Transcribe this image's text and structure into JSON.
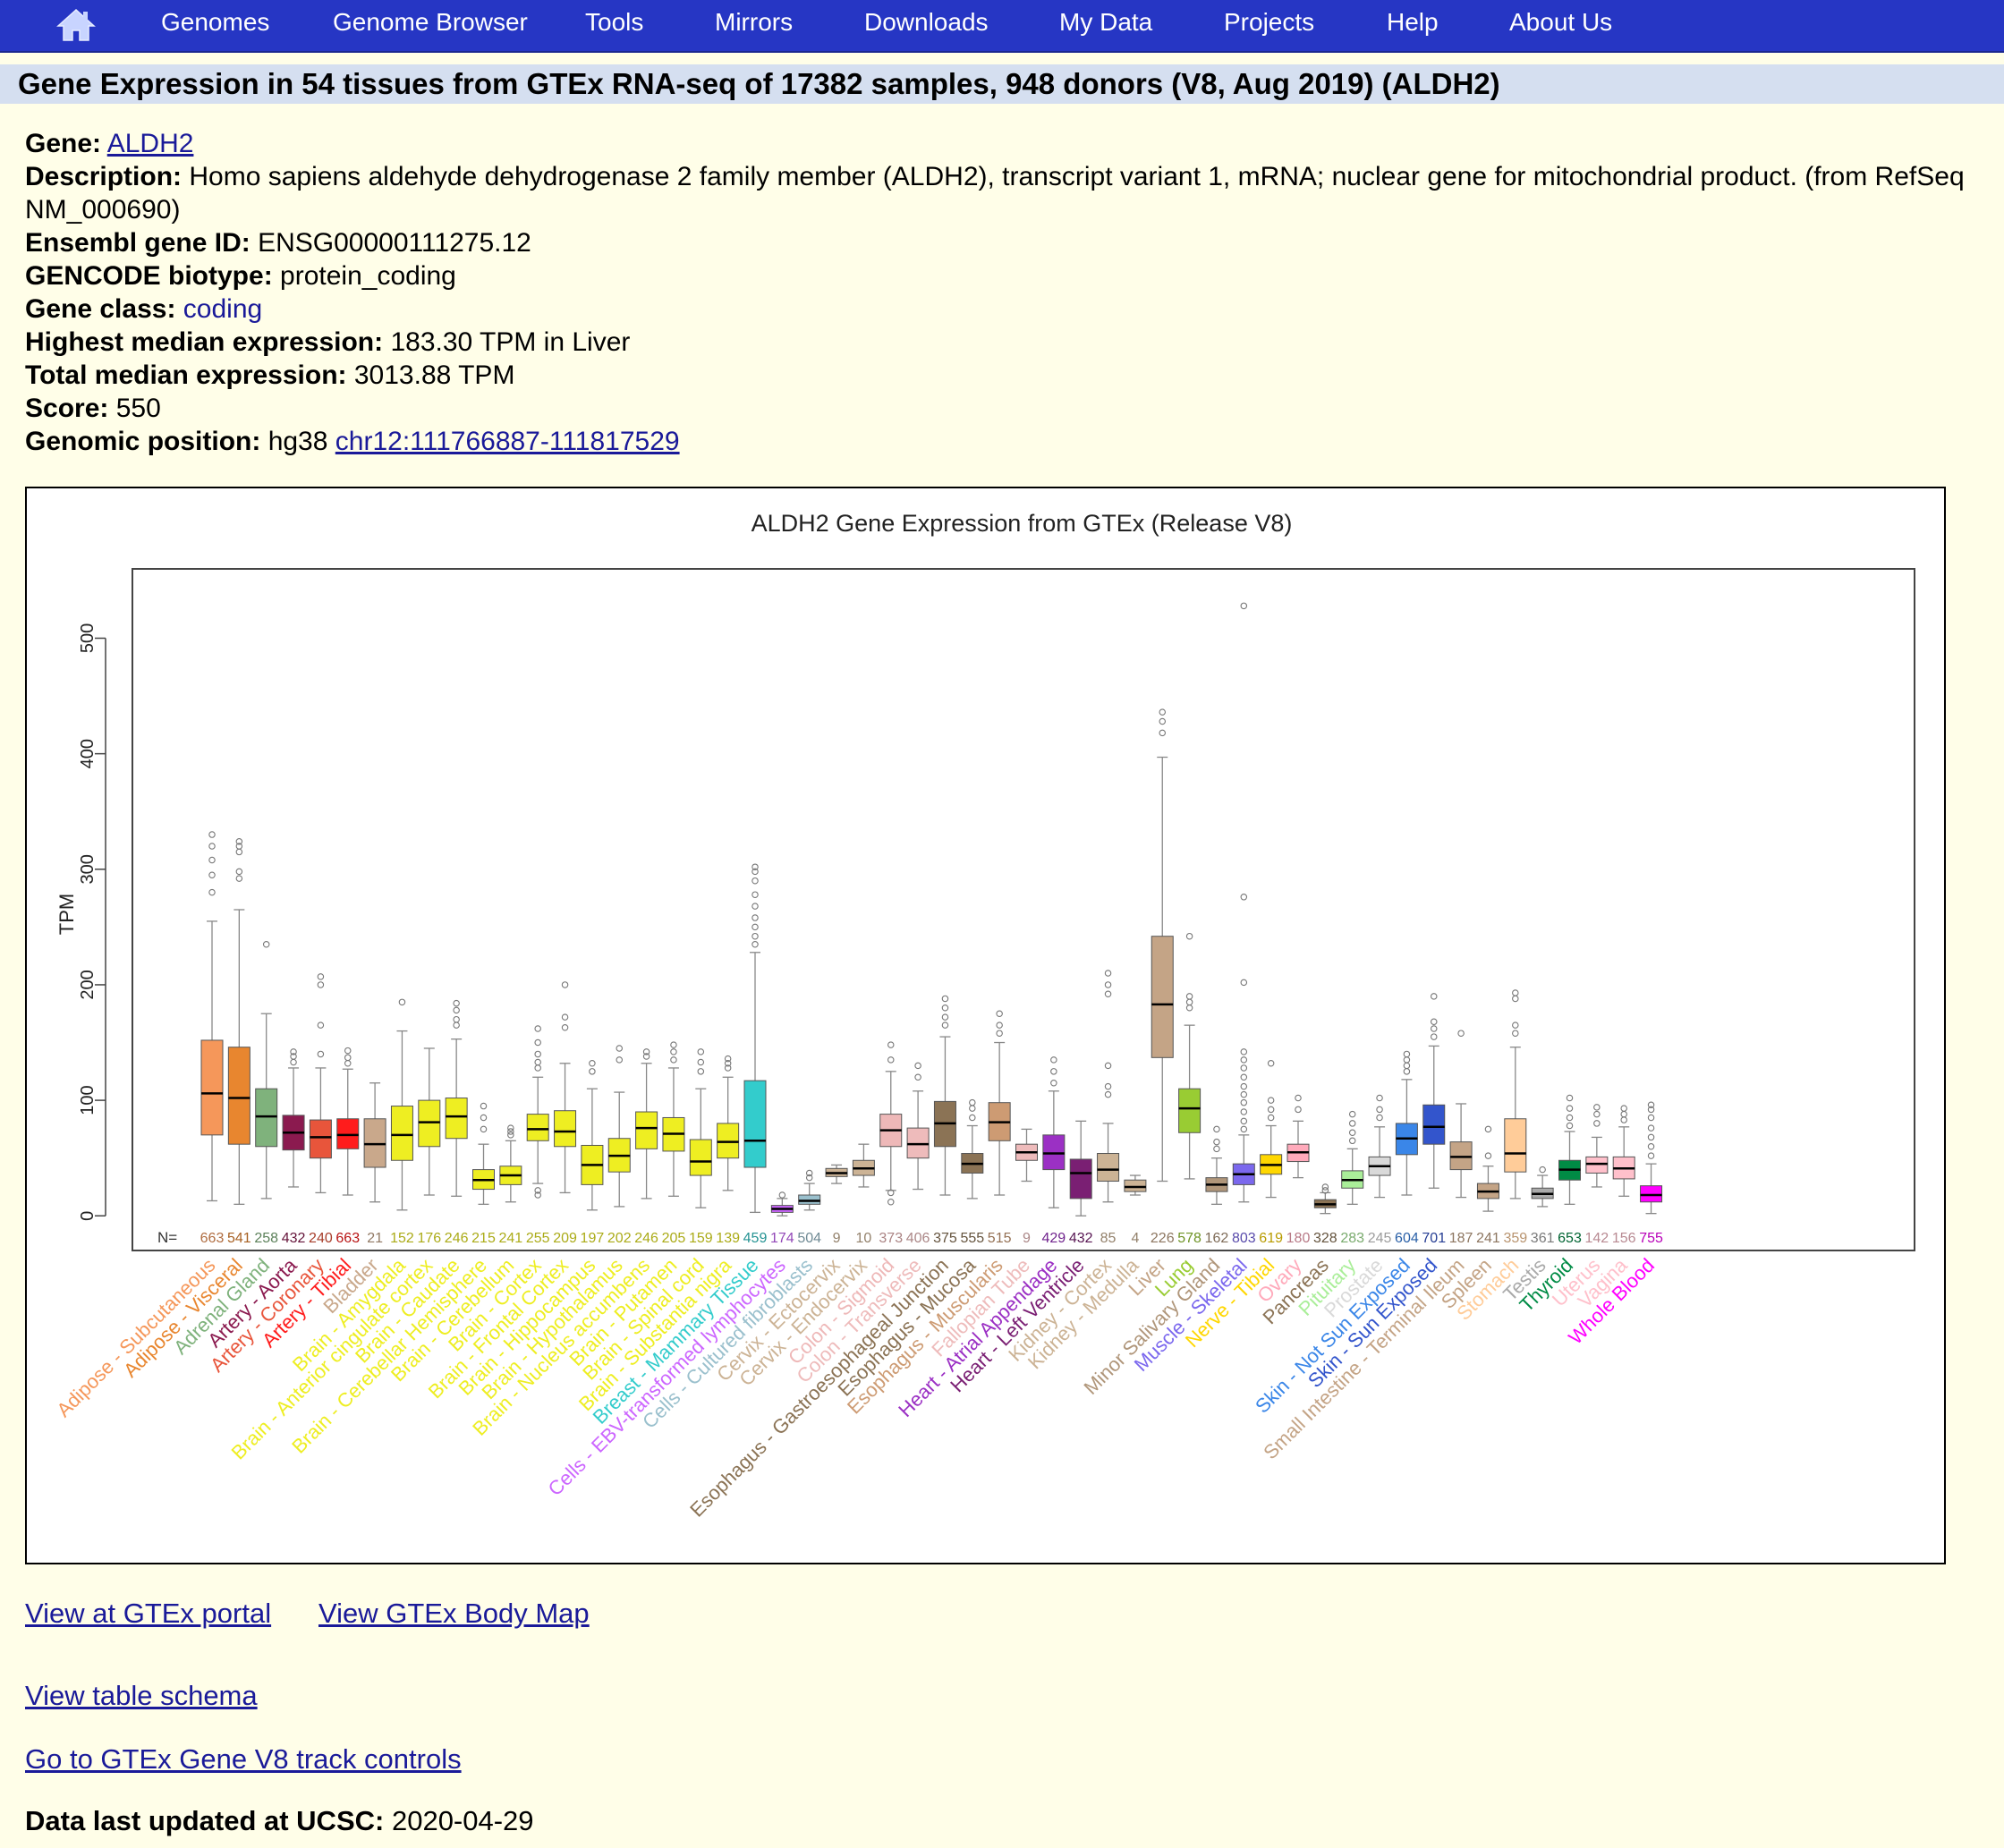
{
  "nav": {
    "home_icon": "home-icon",
    "items": [
      "Genomes",
      "Genome Browser",
      "Tools",
      "Mirrors",
      "Downloads",
      "My Data",
      "Projects",
      "Help",
      "About Us"
    ]
  },
  "title": "Gene Expression in 54 tissues from GTEx RNA-seq of 17382 samples, 948 donors (V8, Aug 2019) (ALDH2)",
  "info": {
    "gene_label": "Gene:",
    "gene": "ALDH2",
    "description_label": "Description:",
    "description": "Homo sapiens aldehyde dehydrogenase 2 family member (ALDH2), transcript variant 1, mRNA; nuclear gene for mitochondrial product. (from RefSeq NM_000690)",
    "ensembl_label": "Ensembl gene ID:",
    "ensembl": "ENSG00000111275.12",
    "biotype_label": "GENCODE biotype:",
    "biotype": "protein_coding",
    "class_label": "Gene class:",
    "class": "coding",
    "highest_label": "Highest median expression:",
    "highest": "183.30 TPM in Liver",
    "total_label": "Total median expression:",
    "total": "3013.88 TPM",
    "score_label": "Score:",
    "score": "550",
    "position_label": "Genomic position:",
    "assembly": "hg38",
    "position": "chr12:111766887-111817529"
  },
  "links": {
    "portal": "View at GTEx portal",
    "bodymap": "View GTEx Body Map",
    "schema": "View table schema",
    "controls": "Go to GTEx Gene V8 track controls"
  },
  "updated_label": "Data last updated at UCSC:",
  "updated": "2020-04-29",
  "chart_data": {
    "type": "box",
    "title": "ALDH2 Gene Expression from GTEx (Release V8)",
    "ylabel": "TPM",
    "ylim": [
      -30,
      560
    ],
    "yticks": [
      0,
      100,
      200,
      300,
      400,
      500
    ],
    "n_label": "N=",
    "tissues": [
      {
        "name": "Adipose - Subcutaneous",
        "n": 663,
        "color": "#f5975a",
        "q1": 70,
        "median": 106,
        "q3": 152,
        "lo": 13,
        "hi": 255,
        "outliers": [
          280,
          295,
          308,
          320,
          330
        ]
      },
      {
        "name": "Adipose - Visceral",
        "n": 541,
        "color": "#e8862f",
        "q1": 62,
        "median": 102,
        "q3": 146,
        "lo": 10,
        "hi": 265,
        "outliers": [
          292,
          298,
          315,
          320,
          324
        ]
      },
      {
        "name": "Adrenal Gland",
        "n": 258,
        "color": "#7fb27c",
        "q1": 60,
        "median": 86,
        "q3": 110,
        "lo": 15,
        "hi": 175,
        "outliers": [
          235
        ]
      },
      {
        "name": "Artery - Aorta",
        "n": 432,
        "color": "#8b1a4f",
        "q1": 57,
        "median": 72,
        "q3": 87,
        "lo": 25,
        "hi": 128,
        "outliers": [
          133,
          138,
          142
        ]
      },
      {
        "name": "Artery - Coronary",
        "n": 240,
        "color": "#e8553b",
        "q1": 50,
        "median": 68,
        "q3": 83,
        "lo": 20,
        "hi": 128,
        "outliers": [
          140,
          165,
          200,
          207
        ]
      },
      {
        "name": "Artery - Tibial",
        "n": 663,
        "color": "#ff1c1c",
        "q1": 58,
        "median": 70,
        "q3": 84,
        "lo": 18,
        "hi": 127,
        "outliers": [
          132,
          137,
          143
        ]
      },
      {
        "name": "Bladder",
        "n": 21,
        "color": "#c9a88b",
        "q1": 42,
        "median": 62,
        "q3": 84,
        "lo": 12,
        "hi": 115,
        "outliers": []
      },
      {
        "name": "Brain - Amygdala",
        "n": 152,
        "color": "#eeee22",
        "q1": 48,
        "median": 70,
        "q3": 95,
        "lo": 5,
        "hi": 160,
        "outliers": [
          185
        ]
      },
      {
        "name": "Brain - Anterior cingulate cortex",
        "n": 176,
        "color": "#eeee22",
        "q1": 60,
        "median": 81,
        "q3": 100,
        "lo": 18,
        "hi": 145,
        "outliers": []
      },
      {
        "name": "Brain - Caudate",
        "n": 246,
        "color": "#eeee22",
        "q1": 67,
        "median": 86,
        "q3": 102,
        "lo": 17,
        "hi": 153,
        "outliers": [
          165,
          170,
          178,
          184
        ]
      },
      {
        "name": "Brain - Cerebellar Hemisphere",
        "n": 215,
        "color": "#eeee22",
        "q1": 23,
        "median": 31,
        "q3": 40,
        "lo": 10,
        "hi": 62,
        "outliers": [
          75,
          85,
          95
        ]
      },
      {
        "name": "Brain - Cerebellum",
        "n": 241,
        "color": "#eeee22",
        "q1": 27,
        "median": 35,
        "q3": 43,
        "lo": 12,
        "hi": 65,
        "outliers": [
          70,
          73,
          76
        ]
      },
      {
        "name": "Brain - Cortex",
        "n": 255,
        "color": "#eeee22",
        "q1": 65,
        "median": 75,
        "q3": 88,
        "lo": 28,
        "hi": 120,
        "outliers": [
          18,
          22,
          128,
          133,
          140,
          150,
          162
        ]
      },
      {
        "name": "Brain - Frontal Cortex",
        "n": 209,
        "color": "#eeee22",
        "q1": 60,
        "median": 73,
        "q3": 91,
        "lo": 20,
        "hi": 132,
        "outliers": [
          163,
          172,
          200
        ]
      },
      {
        "name": "Brain - Hippocampus",
        "n": 197,
        "color": "#eeee22",
        "q1": 27,
        "median": 44,
        "q3": 61,
        "lo": 5,
        "hi": 110,
        "outliers": [
          125,
          132
        ]
      },
      {
        "name": "Brain - Hypothalamus",
        "n": 202,
        "color": "#eeee22",
        "q1": 38,
        "median": 52,
        "q3": 67,
        "lo": 8,
        "hi": 107,
        "outliers": [
          135,
          145
        ]
      },
      {
        "name": "Brain - Nucleus accumbens",
        "n": 246,
        "color": "#eeee22",
        "q1": 58,
        "median": 76,
        "q3": 90,
        "lo": 15,
        "hi": 132,
        "outliers": [
          138,
          142
        ]
      },
      {
        "name": "Brain - Putamen",
        "n": 205,
        "color": "#eeee22",
        "q1": 56,
        "median": 71,
        "q3": 85,
        "lo": 17,
        "hi": 128,
        "outliers": [
          135,
          142,
          148
        ]
      },
      {
        "name": "Brain - Spinal cord",
        "n": 159,
        "color": "#eeee22",
        "q1": 35,
        "median": 47,
        "q3": 66,
        "lo": 7,
        "hi": 110,
        "outliers": [
          125,
          133,
          142
        ]
      },
      {
        "name": "Brain - Substantia nigra",
        "n": 139,
        "color": "#eeee22",
        "q1": 50,
        "median": 64,
        "q3": 80,
        "lo": 22,
        "hi": 120,
        "outliers": [
          128,
          132,
          136
        ]
      },
      {
        "name": "Breast - Mammary Tissue",
        "n": 459,
        "color": "#33cccc",
        "q1": 42,
        "median": 65,
        "q3": 117,
        "lo": 3,
        "hi": 228,
        "outliers": [
          235,
          242,
          250,
          258,
          268,
          278,
          290,
          298,
          302
        ]
      },
      {
        "name": "Cells - EBV-transformed lymphocytes",
        "n": 174,
        "color": "#cc66ff",
        "q1": 3,
        "median": 6,
        "q3": 9,
        "lo": 0,
        "hi": 15,
        "outliers": [
          18
        ]
      },
      {
        "name": "Cells - Cultured fibroblasts",
        "n": 504,
        "color": "#9ac0cd",
        "q1": 10,
        "median": 13,
        "q3": 18,
        "lo": 5,
        "hi": 28,
        "outliers": [
          33,
          37
        ]
      },
      {
        "name": "Cervix - Ectocervix",
        "n": 9,
        "color": "#ccb395",
        "q1": 34,
        "median": 37,
        "q3": 41,
        "lo": 28,
        "hi": 44,
        "outliers": []
      },
      {
        "name": "Cervix - Endocervix",
        "n": 10,
        "color": "#ccb395",
        "q1": 35,
        "median": 41,
        "q3": 48,
        "lo": 25,
        "hi": 62,
        "outliers": []
      },
      {
        "name": "Colon - Sigmoid",
        "n": 373,
        "color": "#eeb8b8",
        "q1": 60,
        "median": 74,
        "q3": 88,
        "lo": 22,
        "hi": 125,
        "outliers": [
          12,
          20,
          135,
          148
        ]
      },
      {
        "name": "Colon - Transverse",
        "n": 406,
        "color": "#eebbbb",
        "q1": 50,
        "median": 62,
        "q3": 76,
        "lo": 23,
        "hi": 108,
        "outliers": [
          120,
          130
        ]
      },
      {
        "name": "Esophagus - Gastroesophageal Junction",
        "n": 375,
        "color": "#8b7355",
        "q1": 60,
        "median": 80,
        "q3": 99,
        "lo": 18,
        "hi": 155,
        "outliers": [
          165,
          172,
          180,
          188
        ]
      },
      {
        "name": "Esophagus - Mucosa",
        "n": 555,
        "color": "#8b7355",
        "q1": 37,
        "median": 45,
        "q3": 54,
        "lo": 15,
        "hi": 78,
        "outliers": [
          85,
          93,
          98
        ]
      },
      {
        "name": "Esophagus - Muscularis",
        "n": 515,
        "color": "#cd9b73",
        "q1": 65,
        "median": 81,
        "q3": 98,
        "lo": 18,
        "hi": 150,
        "outliers": [
          158,
          165,
          175
        ]
      },
      {
        "name": "Fallopian Tube",
        "n": 9,
        "color": "#eebbbb",
        "q1": 48,
        "median": 55,
        "q3": 62,
        "lo": 30,
        "hi": 75,
        "outliers": []
      },
      {
        "name": "Heart - Atrial Appendage",
        "n": 429,
        "color": "#9b30c4",
        "q1": 40,
        "median": 54,
        "q3": 70,
        "lo": 7,
        "hi": 108,
        "outliers": [
          115,
          125,
          135
        ]
      },
      {
        "name": "Heart - Left Ventricle",
        "n": 432,
        "color": "#7a1f73",
        "q1": 15,
        "median": 37,
        "q3": 49,
        "lo": 0,
        "hi": 82,
        "outliers": []
      },
      {
        "name": "Kidney - Cortex",
        "n": 85,
        "color": "#ccb395",
        "q1": 30,
        "median": 40,
        "q3": 54,
        "lo": 12,
        "hi": 80,
        "outliers": [
          105,
          112,
          130,
          192,
          200,
          210
        ]
      },
      {
        "name": "Kidney - Medulla",
        "n": 4,
        "color": "#ccb395",
        "q1": 21,
        "median": 25,
        "q3": 31,
        "lo": 18,
        "hi": 35,
        "outliers": []
      },
      {
        "name": "Liver",
        "n": 226,
        "color": "#c4a486",
        "q1": 137,
        "median": 183,
        "q3": 242,
        "lo": 30,
        "hi": 397,
        "outliers": [
          418,
          428,
          436
        ]
      },
      {
        "name": "Lung",
        "n": 578,
        "color": "#99cc33",
        "q1": 72,
        "median": 93,
        "q3": 110,
        "lo": 32,
        "hi": 165,
        "outliers": [
          180,
          185,
          190,
          242
        ]
      },
      {
        "name": "Minor Salivary Gland",
        "n": 162,
        "color": "#b0967a",
        "q1": 21,
        "median": 27,
        "q3": 33,
        "lo": 10,
        "hi": 50,
        "outliers": [
          58,
          64,
          75
        ]
      },
      {
        "name": "Muscle - Skeletal",
        "n": 803,
        "color": "#7b68ee",
        "q1": 27,
        "median": 36,
        "q3": 45,
        "lo": 12,
        "hi": 70,
        "outliers": [
          75,
          82,
          90,
          98,
          105,
          112,
          120,
          128,
          135,
          142,
          202,
          276,
          528
        ]
      },
      {
        "name": "Nerve - Tibial",
        "n": 619,
        "color": "#ffd700",
        "q1": 36,
        "median": 44,
        "q3": 53,
        "lo": 16,
        "hi": 78,
        "outliers": [
          85,
          92,
          100,
          132
        ]
      },
      {
        "name": "Ovary",
        "n": 180,
        "color": "#ffaabb",
        "q1": 47,
        "median": 55,
        "q3": 62,
        "lo": 33,
        "hi": 82,
        "outliers": [
          92,
          102
        ]
      },
      {
        "name": "Pancreas",
        "n": 328,
        "color": "#8b7355",
        "q1": 7,
        "median": 10,
        "q3": 14,
        "lo": 2,
        "hi": 20,
        "outliers": [
          22,
          25
        ]
      },
      {
        "name": "Pituitary",
        "n": 283,
        "color": "#aaee99",
        "q1": 24,
        "median": 31,
        "q3": 39,
        "lo": 10,
        "hi": 58,
        "outliers": [
          65,
          72,
          80,
          88
        ]
      },
      {
        "name": "Prostate",
        "n": 245,
        "color": "#d9d9d9",
        "q1": 35,
        "median": 43,
        "q3": 51,
        "lo": 16,
        "hi": 77,
        "outliers": [
          85,
          92,
          102
        ]
      },
      {
        "name": "Skin - Not Sun Exposed",
        "n": 604,
        "color": "#3a86e8",
        "q1": 53,
        "median": 67,
        "q3": 80,
        "lo": 18,
        "hi": 118,
        "outliers": [
          125,
          130,
          135,
          140
        ]
      },
      {
        "name": "Skin - Sun Exposed",
        "n": 701,
        "color": "#3355cc",
        "q1": 62,
        "median": 77,
        "q3": 96,
        "lo": 24,
        "hi": 147,
        "outliers": [
          155,
          162,
          168,
          190
        ]
      },
      {
        "name": "Small Intestine - Terminal Ileum",
        "n": 187,
        "color": "#c4a486",
        "q1": 40,
        "median": 51,
        "q3": 64,
        "lo": 16,
        "hi": 97,
        "outliers": [
          158
        ]
      },
      {
        "name": "Spleen",
        "n": 241,
        "color": "#c4a486",
        "q1": 15,
        "median": 21,
        "q3": 28,
        "lo": 4,
        "hi": 43,
        "outliers": [
          52,
          75
        ]
      },
      {
        "name": "Stomach",
        "n": 359,
        "color": "#ffcc99",
        "q1": 38,
        "median": 54,
        "q3": 84,
        "lo": 15,
        "hi": 146,
        "outliers": [
          158,
          165,
          188,
          193
        ]
      },
      {
        "name": "Testis",
        "n": 361,
        "color": "#aaaaaa",
        "q1": 15,
        "median": 19,
        "q3": 24,
        "lo": 8,
        "hi": 35,
        "outliers": [
          40
        ]
      },
      {
        "name": "Thyroid",
        "n": 653,
        "color": "#008b45",
        "q1": 31,
        "median": 40,
        "q3": 48,
        "lo": 10,
        "hi": 73,
        "outliers": [
          78,
          85,
          93,
          102
        ]
      },
      {
        "name": "Uterus",
        "n": 142,
        "color": "#ffc0cb",
        "q1": 37,
        "median": 45,
        "q3": 51,
        "lo": 25,
        "hi": 68,
        "outliers": [
          80,
          88,
          94
        ]
      },
      {
        "name": "Vagina",
        "n": 156,
        "color": "#ffc0cb",
        "q1": 32,
        "median": 41,
        "q3": 51,
        "lo": 17,
        "hi": 77,
        "outliers": [
          83,
          88,
          93
        ]
      },
      {
        "name": "Whole Blood",
        "n": 755,
        "color": "#ff00ff",
        "q1": 12,
        "median": 18,
        "q3": 26,
        "lo": 2,
        "hi": 45,
        "outliers": [
          52,
          60,
          68,
          76,
          85,
          92,
          96
        ]
      }
    ]
  }
}
